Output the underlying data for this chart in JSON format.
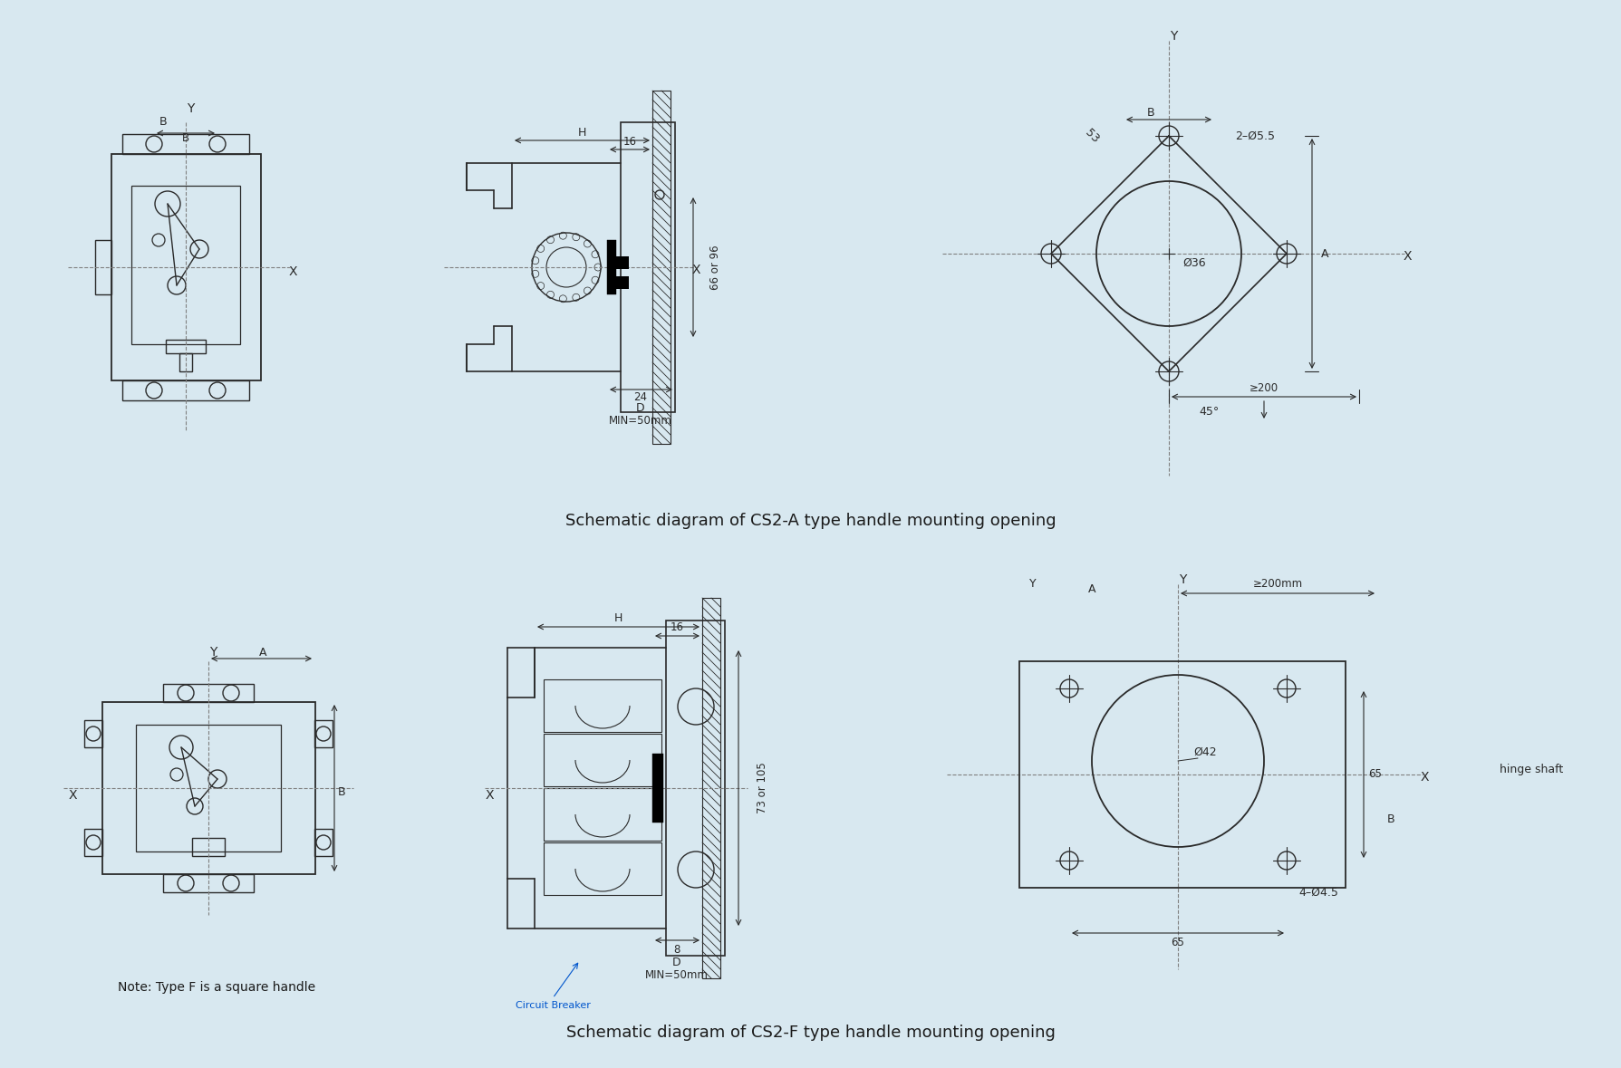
{
  "bg_color": "#d8e8f0",
  "panel_bg": "#d8e8f0",
  "line_color": "#2a2a2a",
  "dim_color": "#2a2a2a",
  "title_top": "Schematic diagram of CS2-A type handle mounting opening",
  "title_bottom": "Schematic diagram of CS2-F type handle mounting opening",
  "note_bottom": "Note: Type F is a square handle",
  "circuit_breaker_label": "Circuit Breaker",
  "hinge_shaft_label": "hinge shaft"
}
